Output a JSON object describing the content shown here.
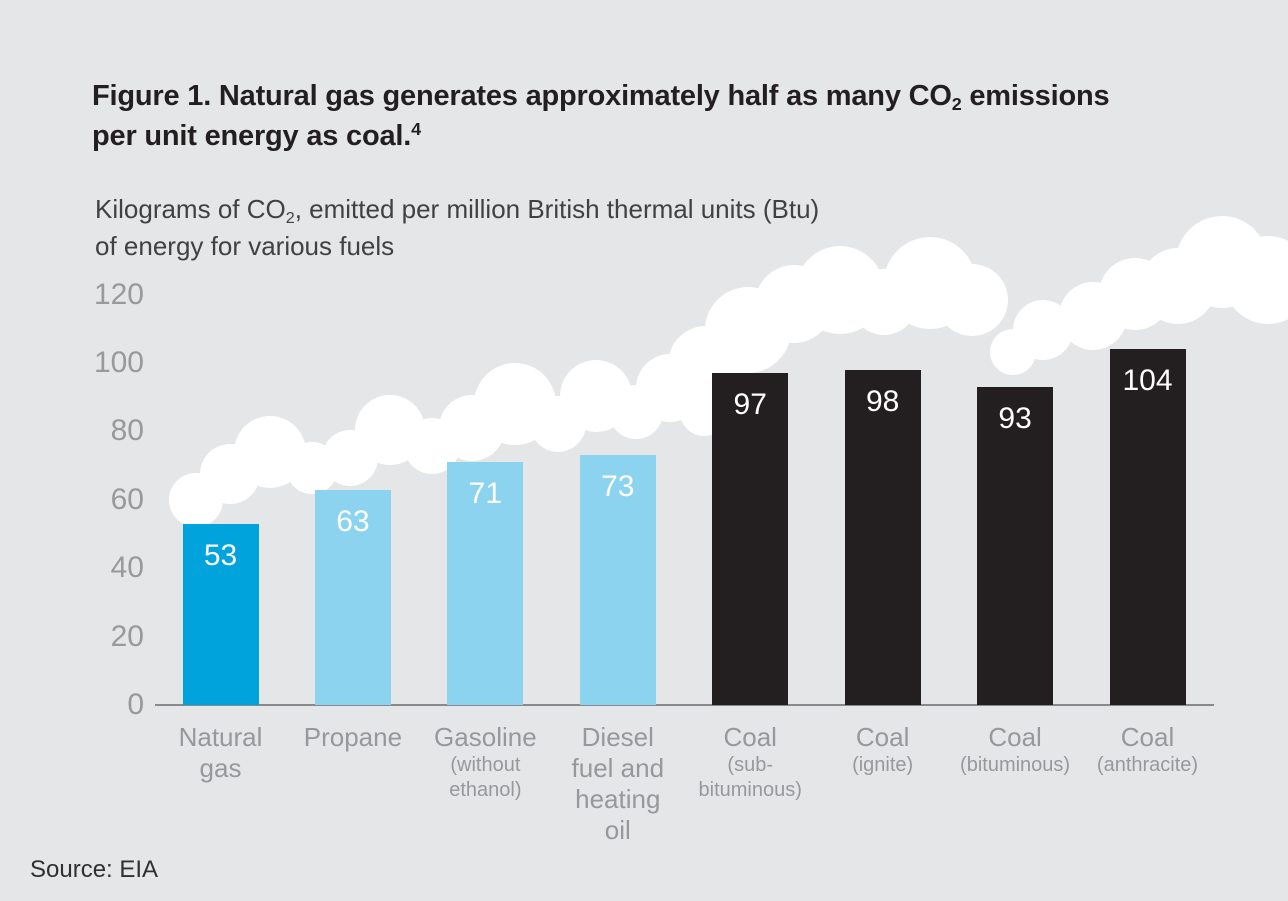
{
  "figure": {
    "title": {
      "line1_pre": "Figure 1. Natural gas generates approximately half as many CO",
      "line1_sub": "2",
      "line1_post": " emissions",
      "line2_pre": "per unit energy as coal.",
      "line2_sup": "4"
    },
    "subtitle": {
      "line1_pre": "Kilograms of CO",
      "line1_sub": "2",
      "line1_post": ", emitted per million British thermal units (Btu)",
      "line2": "of energy for various fuels"
    },
    "source": "Source: EIA"
  },
  "colors": {
    "background": "#E5E6E8",
    "title_text": "#231F20",
    "subtitle_text": "#414144",
    "axis_text": "#97999B",
    "axis_line": "#88898C",
    "natural_gas_bar": "#00A3DB",
    "petroleum_bars": "#8CD3EF",
    "coal_bars": "#231F20",
    "value_label": "#FFFFFF",
    "cloud": "#FFFFFF"
  },
  "chart_data": {
    "type": "bar",
    "title": "Figure 1. Natural gas generates approximately half as many CO2 emissions per unit energy as coal.4",
    "subtitle": "Kilograms of CO2, emitted per million British thermal units (Btu) of energy for various fuels",
    "categories": [
      "Natural gas",
      "Propane",
      "Gasoline (without ethanol)",
      "Diesel fuel and heating oil",
      "Coal (sub-bituminous)",
      "Coal (ignite)",
      "Coal (bituminous)",
      "Coal (anthracite)"
    ],
    "values": [
      53,
      63,
      71,
      73,
      97,
      98,
      93,
      104
    ],
    "bar_colors": [
      "#00A3DB",
      "#8CD3EF",
      "#8CD3EF",
      "#8CD3EF",
      "#231F20",
      "#231F20",
      "#231F20",
      "#231F20"
    ],
    "value_labels": [
      "53",
      "63",
      "71",
      "73",
      "97",
      "98",
      "93",
      "104"
    ],
    "label_lines": [
      {
        "main": [
          "Natural",
          "gas"
        ],
        "sub": []
      },
      {
        "main": [
          "Propane"
        ],
        "sub": []
      },
      {
        "main": [
          "Gasoline"
        ],
        "sub": [
          "(without",
          "ethanol)"
        ]
      },
      {
        "main": [
          "Diesel",
          "fuel and",
          "heating",
          "oil"
        ],
        "sub": []
      },
      {
        "main": [
          "Coal"
        ],
        "sub": [
          "(sub-",
          "bituminous)"
        ]
      },
      {
        "main": [
          "Coal"
        ],
        "sub": [
          "(ignite)"
        ]
      },
      {
        "main": [
          "Coal"
        ],
        "sub": [
          "(bituminous)"
        ]
      },
      {
        "main": [
          "Coal"
        ],
        "sub": [
          "(anthracite)"
        ]
      }
    ],
    "yticks": [
      0,
      20,
      40,
      60,
      80,
      100,
      120
    ],
    "ylim": [
      0,
      120
    ],
    "grid": false,
    "legend": false,
    "source": "Source: EIA"
  }
}
